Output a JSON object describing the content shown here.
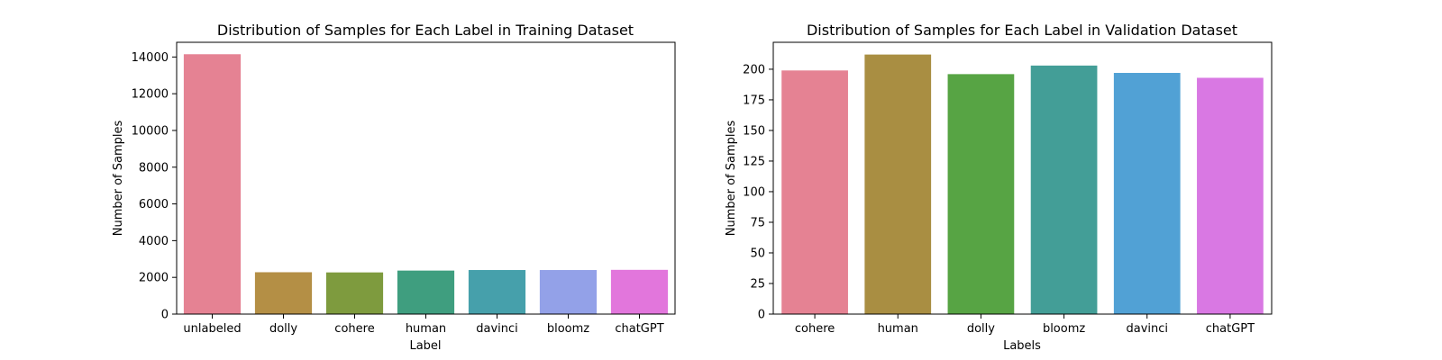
{
  "chart_data": [
    {
      "type": "bar",
      "title": "Distribution of Samples for Each Label in Training Dataset",
      "xlabel": "Label",
      "ylabel": "Number of Samples",
      "categories": [
        "unlabeled",
        "dolly",
        "cohere",
        "human",
        "davinci",
        "bloomz",
        "chatGPT"
      ],
      "values": [
        14150,
        2280,
        2270,
        2370,
        2400,
        2400,
        2410
      ],
      "colors": [
        "#e58293",
        "#b48f45",
        "#7e9b3e",
        "#3f9e7f",
        "#46a0ab",
        "#93a1e8",
        "#e276dc"
      ],
      "ylim": [
        0,
        14800
      ],
      "yticks": [
        0,
        2000,
        4000,
        6000,
        8000,
        10000,
        12000,
        14000
      ],
      "grid": false,
      "legend": "none"
    },
    {
      "type": "bar",
      "title": "Distribution of Samples for Each Label in Validation Dataset",
      "xlabel": "Labels",
      "ylabel": "Number of Samples",
      "categories": [
        "cohere",
        "human",
        "dolly",
        "bloomz",
        "davinci",
        "chatGPT"
      ],
      "values": [
        199,
        212,
        196,
        203,
        197,
        193
      ],
      "colors": [
        "#e58293",
        "#a98e42",
        "#57a444",
        "#439e97",
        "#51a1d5",
        "#d978e3"
      ],
      "ylim": [
        0,
        222
      ],
      "yticks": [
        0,
        25,
        50,
        75,
        100,
        125,
        150,
        175,
        200
      ],
      "grid": false,
      "legend": "none"
    }
  ]
}
